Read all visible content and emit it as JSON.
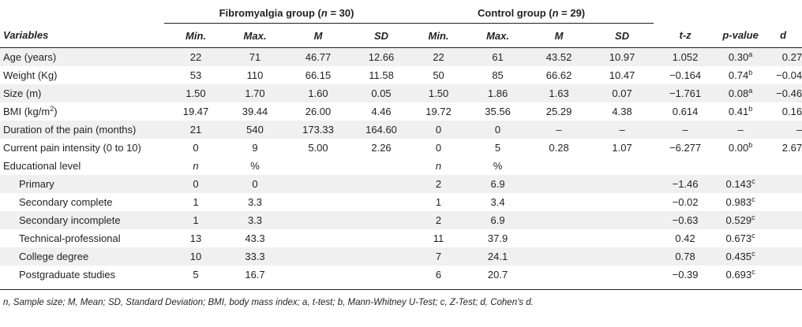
{
  "groups": {
    "fibro": {
      "label": "Fibromyalgia group (",
      "n": "n",
      "rest": " = 30)"
    },
    "control": {
      "label": "Control group (",
      "n": "n",
      "rest": " = 29)"
    }
  },
  "headers": {
    "variables": "Variables",
    "min1": "Min.",
    "max1": "Max.",
    "m1": "M",
    "sd1": "SD",
    "min2": "Min.",
    "max2": "Max.",
    "m2": "M",
    "sd2": "SD",
    "tz": "t-z",
    "p": "p-value",
    "d": "d"
  },
  "rows": [
    {
      "label": "Age (years)",
      "label_sup": "",
      "f_min": "22",
      "f_max": "71",
      "f_m": "46.77",
      "f_sd": "12.66",
      "c_min": "22",
      "c_max": "61",
      "c_m": "43.52",
      "c_sd": "10.97",
      "tz": "1.052",
      "p": "0.30",
      "p_sup": "a",
      "d": "0.27"
    },
    {
      "label": "Weight (Kg)",
      "label_sup": "",
      "f_min": "53",
      "f_max": "110",
      "f_m": "66.15",
      "f_sd": "11.58",
      "c_min": "50",
      "c_max": "85",
      "c_m": "66.62",
      "c_sd": "10.47",
      "tz": "−0.164",
      "p": "0.74",
      "p_sup": "b",
      "d": "−0.04"
    },
    {
      "label": "Size (m)",
      "label_sup": "",
      "f_min": "1.50",
      "f_max": "1.70",
      "f_m": "1.60",
      "f_sd": "0.05",
      "c_min": "1.50",
      "c_max": "1.86",
      "c_m": "1.63",
      "c_sd": "0.07",
      "tz": "−1.761",
      "p": "0.08",
      "p_sup": "a",
      "d": "−0.46"
    },
    {
      "label": "BMI (kg/m",
      "label_sup": "2",
      "label_after": ")",
      "f_min": "19.47",
      "f_max": "39.44",
      "f_m": "26.00",
      "f_sd": "4.46",
      "c_min": "19.72",
      "c_max": "35.56",
      "c_m": "25.29",
      "c_sd": "4.38",
      "tz": "0.614",
      "p": "0.41",
      "p_sup": "b",
      "d": "0.16"
    },
    {
      "label": "Duration of the pain (months)",
      "label_sup": "",
      "f_min": "21",
      "f_max": "540",
      "f_m": "173.33",
      "f_sd": "164.60",
      "c_min": "0",
      "c_max": "0",
      "c_m": "–",
      "c_sd": "–",
      "tz": "–",
      "p": "–",
      "p_sup": "",
      "d": "–"
    },
    {
      "label": "Current pain intensity (0 to 10)",
      "label_sup": "",
      "f_min": "0",
      "f_max": "9",
      "f_m": "5.00",
      "f_sd": "2.26",
      "c_min": "0",
      "c_max": "5",
      "c_m": "0.28",
      "c_sd": "1.07",
      "tz": "−6.277",
      "p": "0.00",
      "p_sup": "b",
      "d": "2.67"
    }
  ],
  "education": {
    "label": "Educational level",
    "f_n": "n",
    "f_pct": "%",
    "c_n": "n",
    "c_pct": "%",
    "levels": [
      {
        "label": "Primary",
        "f_n": "0",
        "f_pct": "0",
        "c_n": "2",
        "c_pct": "6.9",
        "tz": "−1.46",
        "p": "0.143",
        "p_sup": "c"
      },
      {
        "label": "Secondary complete",
        "f_n": "1",
        "f_pct": "3.3",
        "c_n": "1",
        "c_pct": "3.4",
        "tz": "−0.02",
        "p": "0.983",
        "p_sup": "c"
      },
      {
        "label": "Secondary incomplete",
        "f_n": "1",
        "f_pct": "3.3",
        "c_n": "2",
        "c_pct": "6.9",
        "tz": "−0.63",
        "p": "0.529",
        "p_sup": "c"
      },
      {
        "label": "Technical-professional",
        "f_n": "13",
        "f_pct": "43.3",
        "c_n": "11",
        "c_pct": "37.9",
        "tz": "0.42",
        "p": "0.673",
        "p_sup": "c"
      },
      {
        "label": "College degree",
        "f_n": "10",
        "f_pct": "33.3",
        "c_n": "7",
        "c_pct": "24.1",
        "tz": "0.78",
        "p": "0.435",
        "p_sup": "c"
      },
      {
        "label": "Postgraduate studies",
        "f_n": "5",
        "f_pct": "16.7",
        "c_n": "6",
        "c_pct": "20.7",
        "tz": "−0.39",
        "p": "0.693",
        "p_sup": "c"
      }
    ]
  },
  "footnote": "n, Sample size; M, Mean; SD, Standard Deviation; BMI, body mass index; a, t-test; b, Mann-Whitney U-Test; c, Z-Test; d, Cohen's d."
}
